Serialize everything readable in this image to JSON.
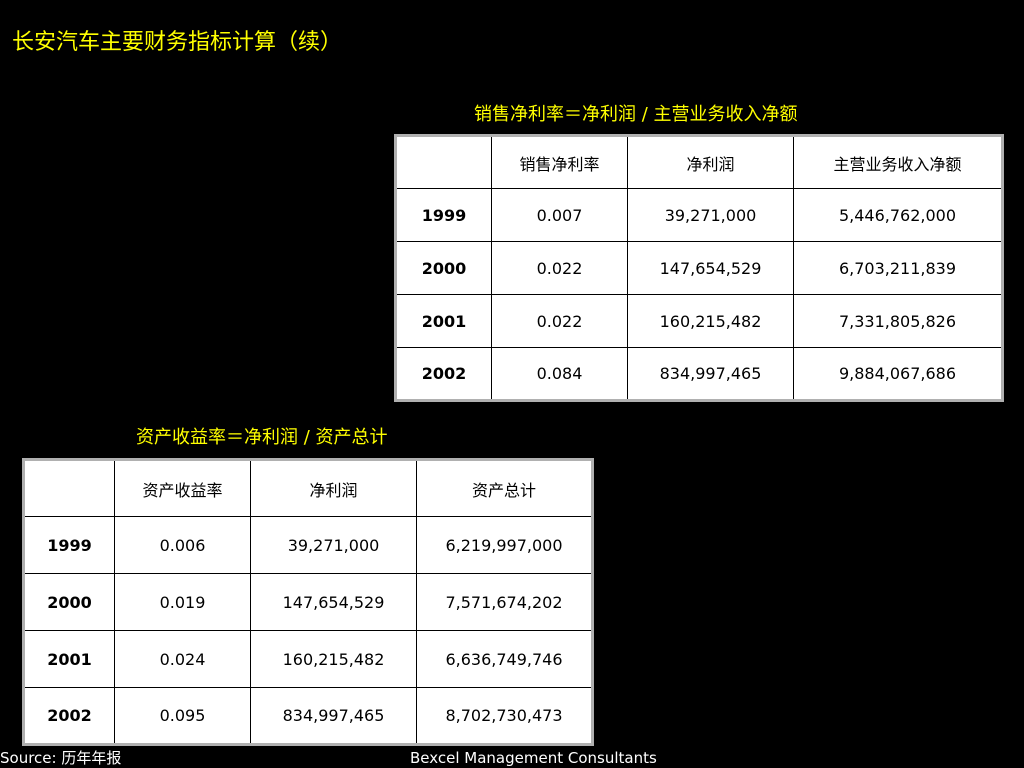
{
  "slide": {
    "title": "长安汽车主要财务指标计算（续）"
  },
  "tables": [
    {
      "caption": "销售净利率＝净利润 / 主营业务收入净额",
      "headers": [
        "",
        "销售净利率",
        "净利润",
        "主营业务收入净额"
      ],
      "rows": [
        [
          "1999",
          "0.007",
          "39,271,000",
          "5,446,762,000"
        ],
        [
          "2000",
          "0.022",
          "147,654,529",
          "6,703,211,839"
        ],
        [
          "2001",
          "0.022",
          "160,215,482",
          "7,331,805,826"
        ],
        [
          "2002",
          "0.084",
          "834,997,465",
          "9,884,067,686"
        ]
      ]
    },
    {
      "caption": "资产收益率＝净利润 / 资产总计",
      "headers": [
        "",
        "资产收益率",
        "净利润",
        "资产总计"
      ],
      "rows": [
        [
          "1999",
          "0.006",
          "39,271,000",
          "6,219,997,000"
        ],
        [
          "2000",
          "0.019",
          "147,654,529",
          "7,571,674,202"
        ],
        [
          "2001",
          "0.024",
          "160,215,482",
          "6,636,749,746"
        ],
        [
          "2002",
          "0.095",
          "834,997,465",
          "8,702,730,473"
        ]
      ]
    }
  ],
  "footer": {
    "source": "Source: 历年年报",
    "company": "Bexcel Management Consultants"
  },
  "colors": {
    "background": "#000000",
    "title": "#ffff00",
    "table_bg": "#ffffff"
  }
}
